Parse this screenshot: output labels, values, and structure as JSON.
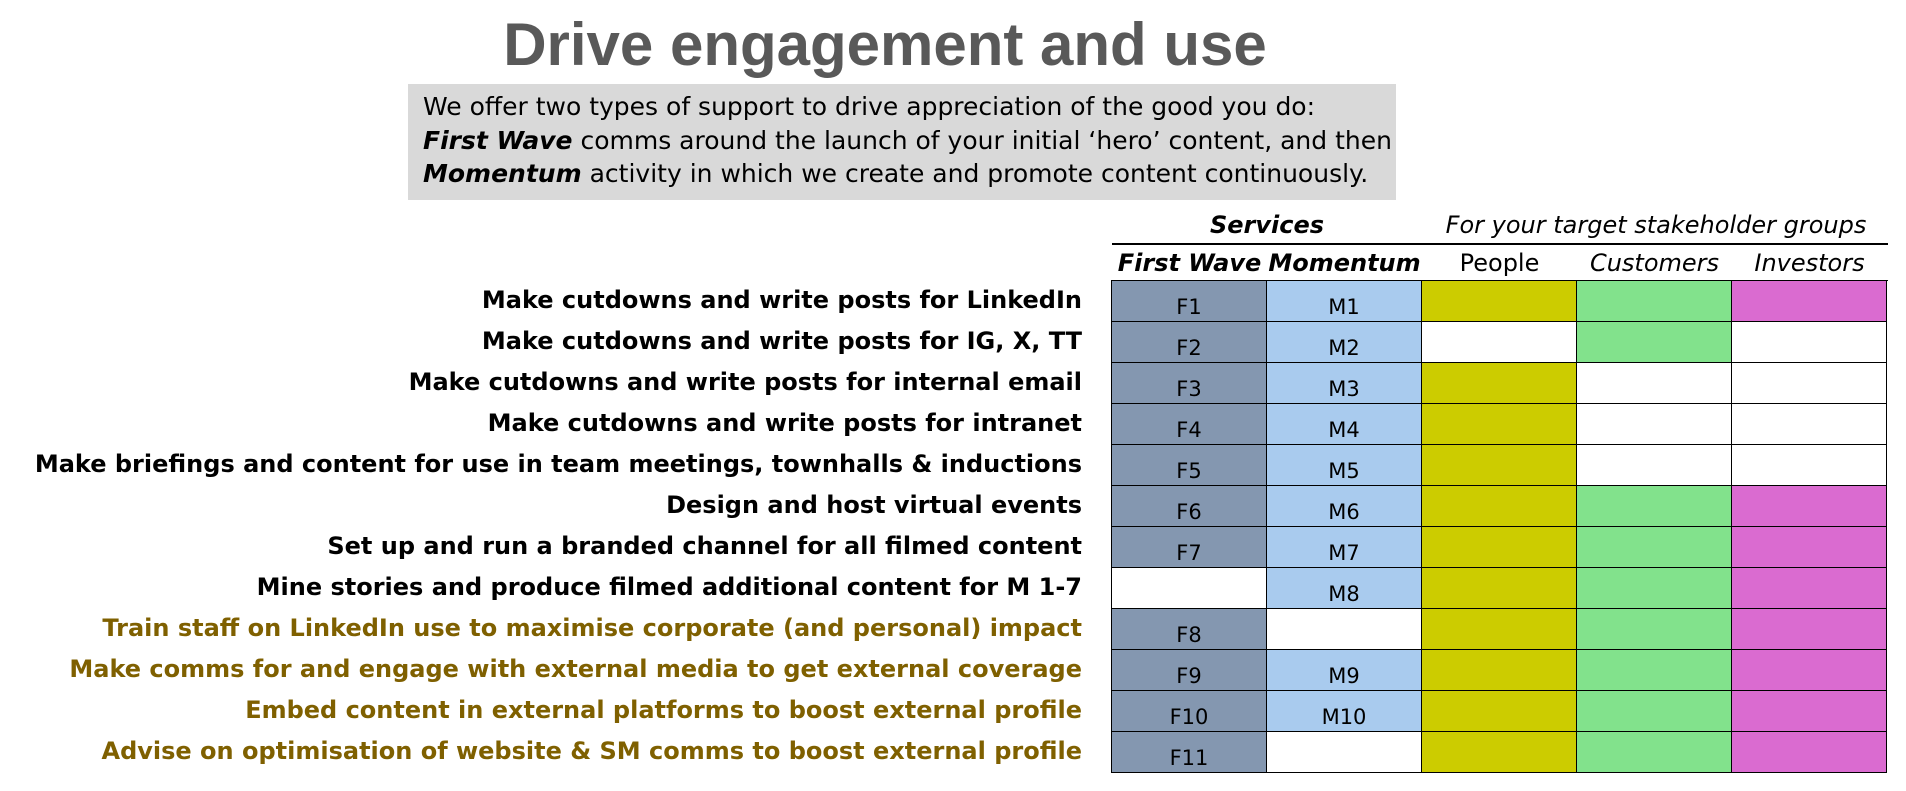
{
  "title": "Drive engagement and use",
  "intro": {
    "line1": "We offer two types of support to drive appreciation of the good you do:",
    "line2_bold": "First Wave",
    "line2_rest": " comms around the launch of your initial ‘hero’ content, and then",
    "line3_bold": "Momentum",
    "line3_rest": " activity in which we create and promote content continuously."
  },
  "headers": {
    "services": "Services",
    "stakeholders": "For your target stakeholder groups"
  },
  "columns": [
    "First Wave",
    "Momentum",
    "People",
    "Customers",
    "Investors"
  ],
  "colors": {
    "first_wave": "#8497b0",
    "momentum": "#a9cbee",
    "people": "#cccc00",
    "customers": "#82e28c",
    "investors": "#da6bd0",
    "empty": "#ffffff",
    "label_internal": "#000000",
    "label_external": "#7f6000"
  },
  "rows": [
    {
      "label": "Make cutdowns and write posts for LinkedIn",
      "external": false,
      "first_wave": "F1",
      "momentum": "M1",
      "people": true,
      "customers": true,
      "investors": true
    },
    {
      "label": "Make cutdowns and write posts for IG, X, TT",
      "external": false,
      "first_wave": "F2",
      "momentum": "M2",
      "people": false,
      "customers": true,
      "investors": false
    },
    {
      "label": "Make cutdowns and write posts for internal email",
      "external": false,
      "first_wave": "F3",
      "momentum": "M3",
      "people": true,
      "customers": false,
      "investors": false
    },
    {
      "label": "Make cutdowns and write posts for intranet",
      "external": false,
      "first_wave": "F4",
      "momentum": "M4",
      "people": true,
      "customers": false,
      "investors": false
    },
    {
      "label": "Make briefings and content for use in team meetings, townhalls & inductions",
      "external": false,
      "first_wave": "F5",
      "momentum": "M5",
      "people": true,
      "customers": false,
      "investors": false
    },
    {
      "label": "Design and host virtual events",
      "external": false,
      "first_wave": "F6",
      "momentum": "M6",
      "people": true,
      "customers": true,
      "investors": true
    },
    {
      "label": "Set up and run a branded channel for all filmed content",
      "external": false,
      "first_wave": "F7",
      "momentum": "M7",
      "people": true,
      "customers": true,
      "investors": true
    },
    {
      "label": "Mine stories and produce filmed additional content for M 1-7",
      "external": false,
      "first_wave": "",
      "momentum": "M8",
      "people": true,
      "customers": true,
      "investors": true
    },
    {
      "label": "Train staff on LinkedIn use to maximise corporate (and personal) impact",
      "external": true,
      "first_wave": "F8",
      "momentum": "",
      "people": true,
      "customers": true,
      "investors": true
    },
    {
      "label": "Make comms for and engage with external media to get external coverage",
      "external": true,
      "first_wave": "F9",
      "momentum": "M9",
      "people": true,
      "customers": true,
      "investors": true
    },
    {
      "label": "Embed content in external platforms to boost external profile",
      "external": true,
      "first_wave": "F10",
      "momentum": "M10",
      "people": true,
      "customers": true,
      "investors": true
    },
    {
      "label": "Advise on optimisation of website & SM comms to boost external profile",
      "external": true,
      "first_wave": "F11",
      "momentum": "",
      "people": true,
      "customers": true,
      "investors": true
    }
  ]
}
